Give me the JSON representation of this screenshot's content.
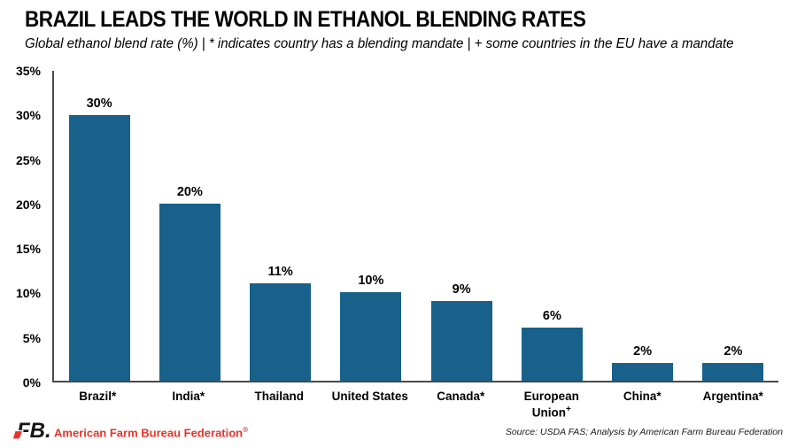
{
  "header": {
    "title": "BRAZIL LEADS THE WORLD IN ETHANOL BLENDING RATES",
    "subtitle": "Global ethanol blend rate (%)  |  * indicates country has a blending mandate  |  + some countries in the EU have a mandate"
  },
  "chart_data": {
    "type": "bar",
    "title": "BRAZIL LEADS THE WORLD IN ETHANOL BLENDING RATES",
    "subtitle": "Global ethanol blend rate (%) | * indicates country has a blending mandate | + some countries in the EU have a mandate",
    "categories": [
      "Brazil*",
      "India*",
      "Thailand",
      "United States",
      "Canada*",
      "European Union+",
      "China*",
      "Argentina*"
    ],
    "values": [
      30,
      20,
      11,
      10,
      9,
      6,
      2,
      2
    ],
    "data_labels": [
      "30%",
      "20%",
      "11%",
      "10%",
      "9%",
      "6%",
      "2%",
      "2%"
    ],
    "bars": [
      {
        "country": "Brazil",
        "marker": "*",
        "value": 30,
        "label": "30%"
      },
      {
        "country": "India",
        "marker": "*",
        "value": 20,
        "label": "20%"
      },
      {
        "country": "Thailand",
        "marker": "",
        "value": 11,
        "label": "11%"
      },
      {
        "country": "United States",
        "marker": "",
        "value": 10,
        "label": "10%"
      },
      {
        "country": "Canada",
        "marker": "*",
        "value": 9,
        "label": "9%"
      },
      {
        "country": "European Union",
        "marker": "+",
        "value": 6,
        "label": "6%"
      },
      {
        "country": "China",
        "marker": "*",
        "value": 2,
        "label": "2%"
      },
      {
        "country": "Argentina",
        "marker": "*",
        "value": 2,
        "label": "2%"
      }
    ],
    "xlabel": "",
    "ylabel": "Global ethanol blend rate (%)",
    "ylim": [
      0,
      35
    ],
    "yticks": [
      "0%",
      "5%",
      "10%",
      "15%",
      "20%",
      "25%",
      "30%",
      "35%"
    ],
    "grid": false,
    "legend": false,
    "bar_color": "#17618a"
  },
  "footer": {
    "logo": "FB.",
    "brand": "American Farm Bureau Federation",
    "registered_mark": "®",
    "source": "Source: USDA FAS; Analysis by American Farm Bureau Federation"
  },
  "colors": {
    "bar": "#17618a",
    "brand_red": "#e8332a",
    "axis": "#4a4a4a",
    "text": "#000000",
    "background": "#ffffff"
  }
}
